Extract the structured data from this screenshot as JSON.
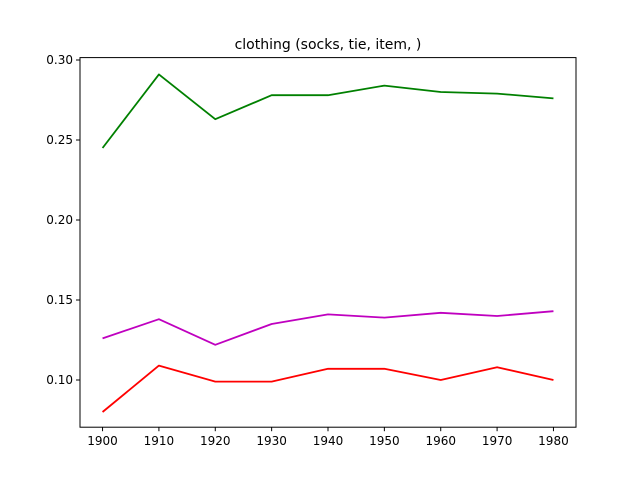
{
  "chart_data": {
    "type": "line",
    "title": "clothing (socks, tie, item, )",
    "xlabel": "",
    "ylabel": "",
    "x": [
      1900,
      1910,
      1920,
      1930,
      1940,
      1950,
      1960,
      1970,
      1980
    ],
    "xticks": [
      "1900",
      "1910",
      "1920",
      "1930",
      "1940",
      "1950",
      "1960",
      "1970",
      "1980"
    ],
    "yticks": [
      "0.10",
      "0.15",
      "0.20",
      "0.25",
      "0.30"
    ],
    "ytick_values": [
      0.1,
      0.15,
      0.2,
      0.25,
      0.3
    ],
    "xlim": [
      1896,
      1984
    ],
    "ylim": [
      0.0705,
      0.3015
    ],
    "grid": false,
    "legend": "none",
    "series": [
      {
        "color": "#008000",
        "values": [
          0.245,
          0.291,
          0.263,
          0.278,
          0.278,
          0.284,
          0.28,
          0.279,
          0.276
        ]
      },
      {
        "color": "#bf00bf",
        "values": [
          0.126,
          0.138,
          0.122,
          0.135,
          0.141,
          0.139,
          0.142,
          0.14,
          0.143
        ]
      },
      {
        "color": "#ff0000",
        "values": [
          0.08,
          0.109,
          0.099,
          0.099,
          0.107,
          0.107,
          0.1,
          0.108,
          0.1
        ]
      }
    ]
  }
}
